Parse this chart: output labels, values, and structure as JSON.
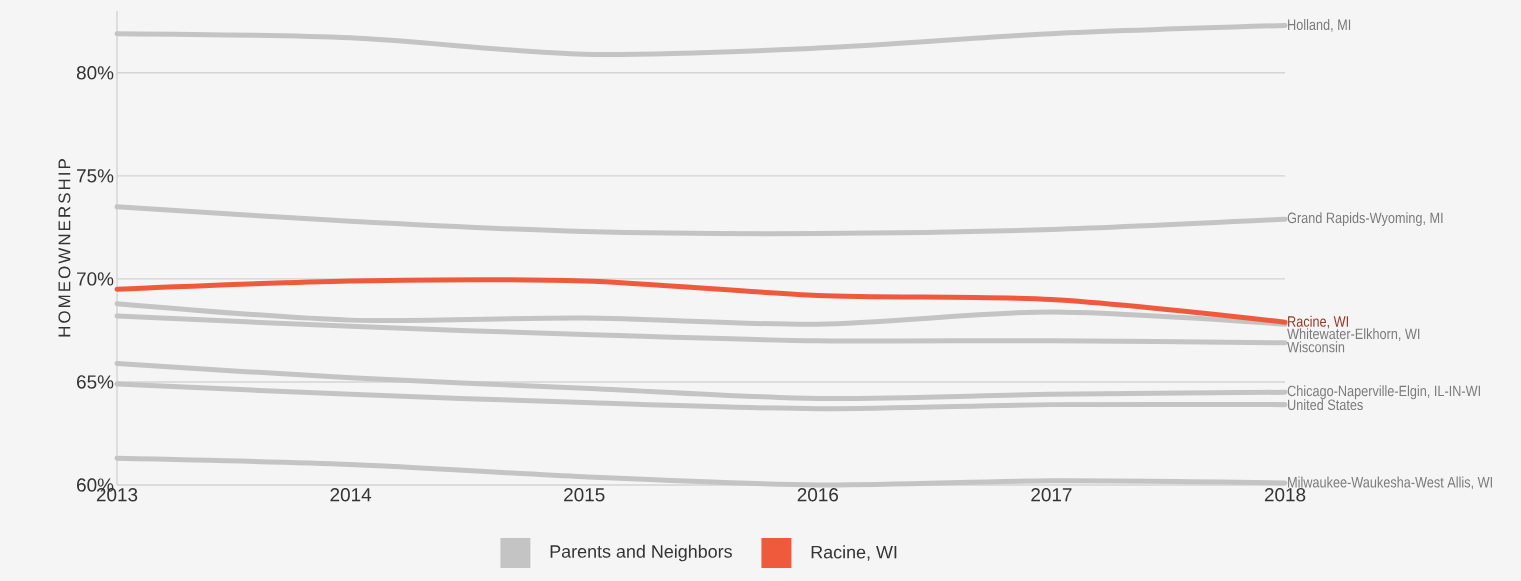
{
  "chart_data": {
    "type": "line",
    "ylabel": "HOMEOWNERSHIP",
    "x": [
      2013,
      2014,
      2015,
      2016,
      2017,
      2018
    ],
    "series": [
      {
        "name": "Holland, MI",
        "color": "#c4c4c4",
        "values": [
          81.9,
          81.7,
          80.9,
          81.2,
          81.9,
          82.3
        ]
      },
      {
        "name": "Grand Rapids-Wyoming, MI",
        "color": "#c4c4c4",
        "values": [
          73.5,
          72.8,
          72.3,
          72.2,
          72.4,
          72.9
        ]
      },
      {
        "name": "Whitewater-Elkhorn, WI",
        "color": "#c4c4c4",
        "values": [
          68.8,
          68.0,
          68.1,
          67.8,
          68.4,
          67.8
        ]
      },
      {
        "name": "Wisconsin",
        "color": "#c4c4c4",
        "values": [
          68.2,
          67.7,
          67.3,
          67.0,
          67.0,
          66.9
        ]
      },
      {
        "name": "Chicago-Naperville-Elgin, IL-IN-WI",
        "color": "#c4c4c4",
        "values": [
          65.9,
          65.2,
          64.7,
          64.2,
          64.4,
          64.5
        ]
      },
      {
        "name": "United States",
        "color": "#c4c4c4",
        "values": [
          64.9,
          64.4,
          64.0,
          63.7,
          63.9,
          63.9
        ]
      },
      {
        "name": "Milwaukee-Waukesha-West Allis, WI",
        "color": "#c4c4c4",
        "values": [
          61.3,
          61.0,
          60.4,
          60.0,
          60.2,
          60.1
        ]
      },
      {
        "name": "Racine, WI",
        "color": "#f05a3c",
        "values": [
          69.5,
          69.9,
          69.9,
          69.2,
          69.0,
          67.9
        ]
      }
    ],
    "xlim": [
      2013,
      2018
    ],
    "ylim": [
      60,
      83
    ],
    "xticks": [
      2013,
      2014,
      2015,
      2016,
      2017,
      2018
    ],
    "yticks": [
      {
        "value": 60,
        "label": "60%"
      },
      {
        "value": 65,
        "label": "65%"
      },
      {
        "value": 70,
        "label": "70%"
      },
      {
        "value": 75,
        "label": "75%"
      },
      {
        "value": 80,
        "label": "80%"
      }
    ],
    "grid": "y",
    "legend": "bottom",
    "annotations": [
      "Parents and Neighbors"
    ]
  }
}
